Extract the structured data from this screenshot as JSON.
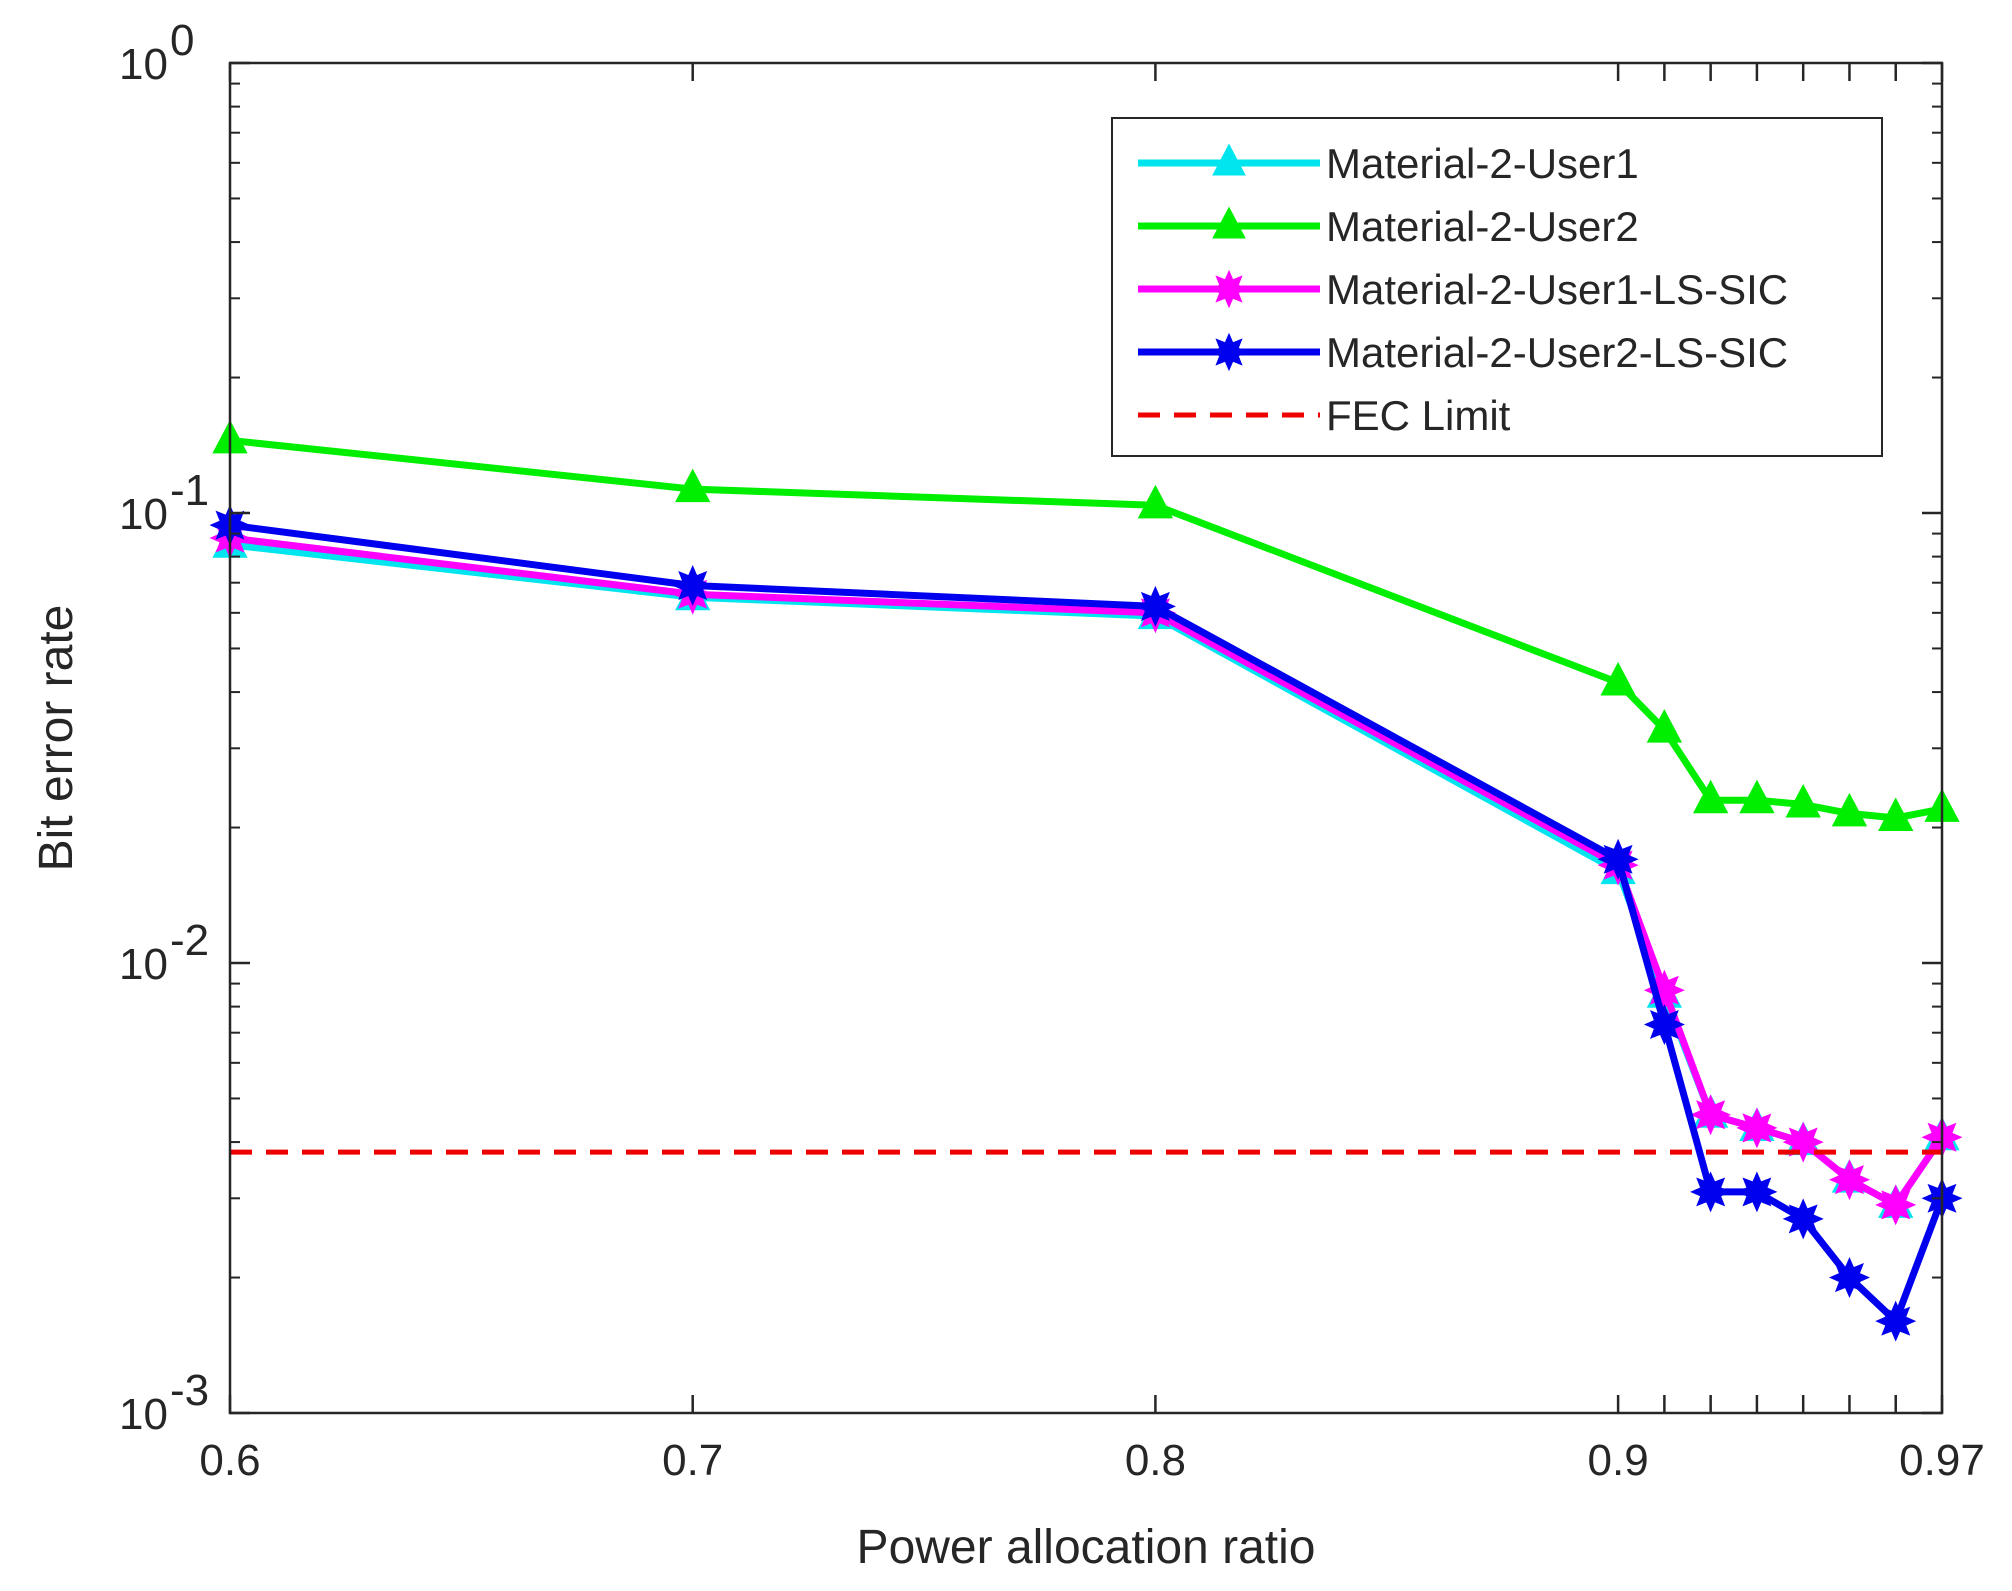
{
  "chart_data": {
    "type": "line",
    "title": "",
    "xlabel": "Power allocation ratio",
    "ylabel": "Bit error rate",
    "yscale": "log",
    "ylim": [
      0.001,
      1
    ],
    "grid": false,
    "legend_position": "top-right",
    "categories": [
      "0.6",
      "0.7",
      "0.8",
      "0.9",
      "0.91",
      "0.92",
      "0.93",
      "0.94",
      "0.95",
      "0.96",
      "0.97"
    ],
    "x_tick_labels": [
      "0.6",
      "0.7",
      "0.8",
      "0.9",
      "0.97"
    ],
    "y_ticks": [
      {
        "value": 1,
        "base": "10",
        "exp": "0"
      },
      {
        "value": 0.1,
        "base": "10",
        "exp": "-1"
      },
      {
        "value": 0.01,
        "base": "10",
        "exp": "-2"
      },
      {
        "value": 0.001,
        "base": "10",
        "exp": "-3"
      }
    ],
    "series": [
      {
        "name": "Material-2-User1",
        "color": "#00e5ee",
        "marker": "triangle",
        "values": [
          0.085,
          0.065,
          0.059,
          0.016,
          0.0085,
          0.0046,
          0.0043,
          0.004,
          0.0033,
          0.0029,
          0.0041
        ]
      },
      {
        "name": "Material-2-User2",
        "color": "#00ee00",
        "marker": "triangle",
        "values": [
          0.145,
          0.113,
          0.104,
          0.042,
          0.033,
          0.023,
          0.023,
          0.0225,
          0.0215,
          0.021,
          0.022
        ]
      },
      {
        "name": "Material-2-User1-LS-SIC",
        "color": "#ff00ff",
        "marker": "star",
        "values": [
          0.088,
          0.066,
          0.06,
          0.0165,
          0.0087,
          0.0046,
          0.0043,
          0.004,
          0.0033,
          0.0029,
          0.0041
        ]
      },
      {
        "name": "Material-2-User2-LS-SIC",
        "color": "#0000ee",
        "marker": "star",
        "values": [
          0.094,
          0.069,
          0.062,
          0.017,
          0.0073,
          0.0031,
          0.0031,
          0.0027,
          0.002,
          0.0016,
          0.003
        ]
      },
      {
        "name": "FEC Limit",
        "color": "#ee0000",
        "marker": "none",
        "dashed": true,
        "values": [
          0.0038,
          0.0038,
          0.0038,
          0.0038,
          0.0038,
          0.0038,
          0.0038,
          0.0038,
          0.0038,
          0.0038,
          0.0038
        ]
      }
    ]
  }
}
